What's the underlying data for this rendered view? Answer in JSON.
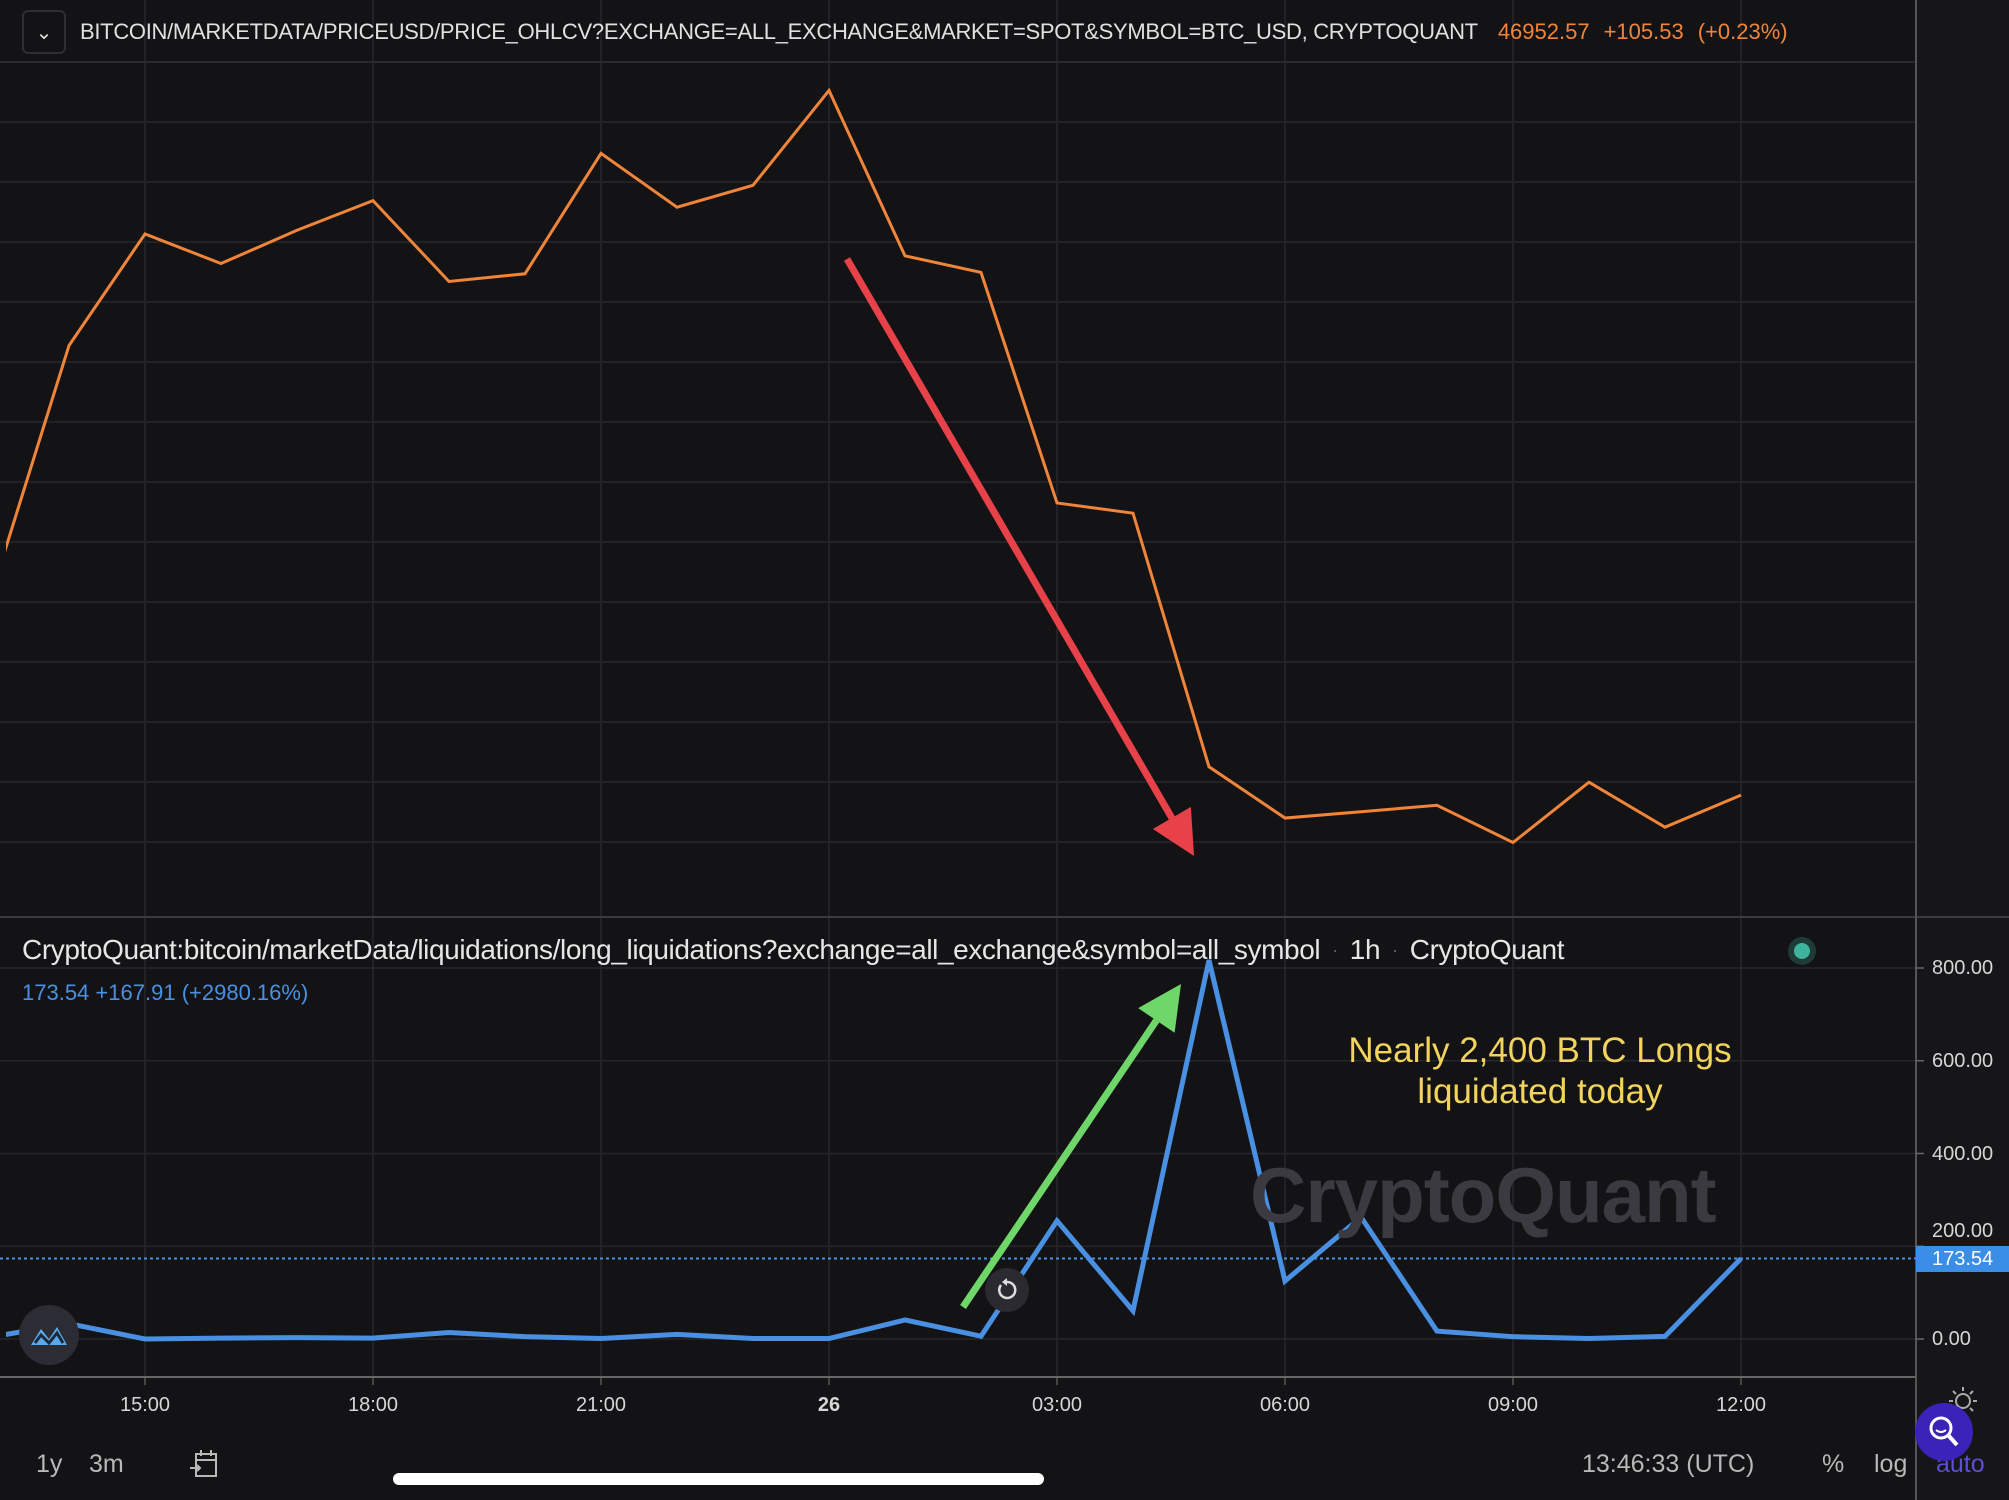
{
  "header": {
    "dropdown_icon": "chevron-down-icon",
    "title": "BITCOIN/MARKETDATA/PRICEUSD/PRICE_OHLCV?EXCHANGE=ALL_EXCHANGE&MARKET=SPOT&SYMBOL=BTC_USD, CRYPTOQUANT",
    "price": "46952.57",
    "change": "+105.53",
    "change_pct": "(+0.23%)"
  },
  "lower_legend": {
    "title": "CryptoQuant:bitcoin/marketData/liquidations/long_liquidations?exchange=all_exchange&symbol=all_symbol",
    "interval": "1h",
    "source": "CryptoQuant",
    "value": "173.54",
    "change": "+167.91",
    "change_pct": "(+2980.16%)",
    "status_color": "#3fb39b"
  },
  "annotation": {
    "line1": "Nearly 2,400 BTC Longs",
    "line2": "liquidated today"
  },
  "watermark": "CryptoQuant",
  "colors": {
    "price": "#f0853a",
    "liquidations": "#4a90e2",
    "down_arrow": "#e8414a",
    "up_arrow": "#6fd66a",
    "accent": "#5b4fd6"
  },
  "chart_data": [
    {
      "type": "line",
      "title": "BITCOIN/MARKETDATA/PRICEUSD/PRICE_OHLCV?EXCHANGE=ALL_EXCHANGE&MARKET=SPOT&SYMBOL=BTC_USD, CRYPTOQUANT",
      "x": [
        "13:00",
        "14:00",
        "15:00",
        "16:00",
        "17:00",
        "18:00",
        "19:00",
        "20:00",
        "21:00",
        "22:00",
        "23:00",
        "26",
        "01:00",
        "02:00",
        "03:00",
        "04:00",
        "05:00",
        "06:00",
        "07:00",
        "08:00",
        "09:00",
        "10:00",
        "11:00",
        "12:00"
      ],
      "values": [
        47677,
        48532,
        48924,
        48820,
        48937,
        49041,
        48757,
        48784,
        49207,
        49018,
        49095,
        49428,
        48847,
        48789,
        47979,
        47943,
        47052,
        46872,
        46894,
        46917,
        46786,
        46998,
        46840,
        46952.57
      ],
      "ylim": [
        46700,
        49500
      ],
      "grid": true
    },
    {
      "type": "line",
      "title": "CryptoQuant:bitcoin/marketData/liquidations/long_liquidations?exchange=all_exchange&symbol=all_symbol",
      "x": [
        "13:00",
        "14:00",
        "15:00",
        "16:00",
        "17:00",
        "18:00",
        "19:00",
        "20:00",
        "21:00",
        "22:00",
        "23:00",
        "26",
        "01:00",
        "02:00",
        "03:00",
        "04:00",
        "05:00",
        "06:00",
        "07:00",
        "08:00",
        "09:00",
        "10:00",
        "11:00",
        "12:00"
      ],
      "values": [
        5,
        33,
        0,
        2,
        3,
        2,
        14,
        5,
        1,
        10,
        1,
        1,
        41,
        6,
        255,
        61,
        817,
        125,
        263,
        17,
        5,
        1,
        5.63,
        173.54
      ],
      "ylim": [
        0,
        800
      ],
      "yticks": [
        "800.00",
        "600.00",
        "400.00",
        "200.00",
        "0.00"
      ],
      "last_value_label": "173.54",
      "grid": true
    }
  ],
  "x_axis": {
    "ticks": [
      "15:00",
      "18:00",
      "21:00",
      "26",
      "03:00",
      "06:00",
      "09:00",
      "12:00"
    ]
  },
  "toolbar": {
    "range_1y": "1y",
    "range_3m": "3m",
    "goto_date_icon": "calendar-goto-icon",
    "time": "13:46:33 (UTC)",
    "percent": "%",
    "log": "log",
    "auto": "auto"
  }
}
